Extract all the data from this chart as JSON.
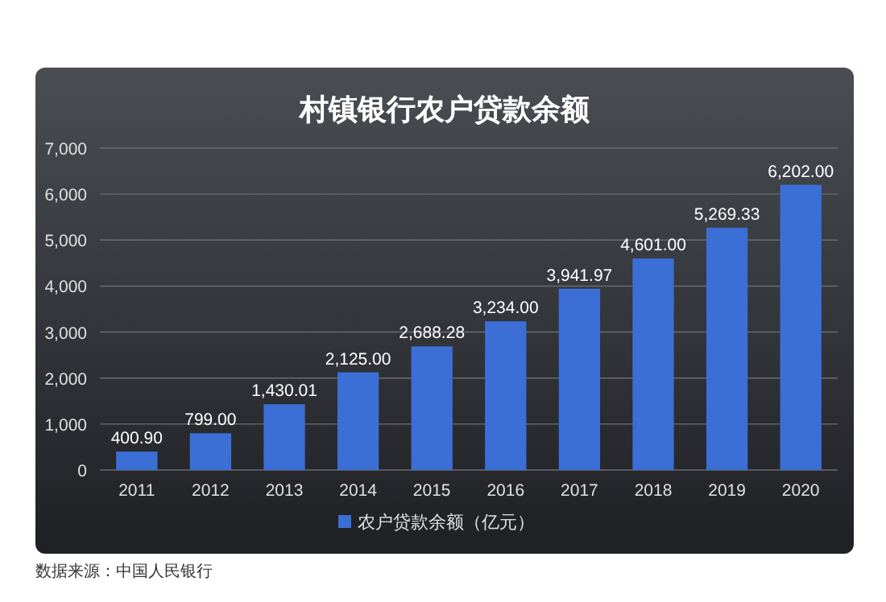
{
  "chart_data": {
    "type": "bar",
    "title": "村镇银行农户贷款余额",
    "categories": [
      "2011",
      "2012",
      "2013",
      "2014",
      "2015",
      "2016",
      "2017",
      "2018",
      "2019",
      "2020"
    ],
    "series": [
      {
        "name": "农户贷款余额（亿元）",
        "color": "#3b6fd6",
        "values": [
          400.9,
          799.0,
          1430.01,
          2125.0,
          2688.28,
          3234.0,
          3941.97,
          4601.0,
          5269.33,
          6202.0
        ]
      }
    ],
    "value_labels": [
      "400.90",
      "799.00",
      "1,430.01",
      "2,125.00",
      "2,688.28",
      "3,234.00",
      "3,941.97",
      "4,601.00",
      "5,269.33",
      "6,202.00"
    ],
    "ylim": [
      0,
      7000
    ],
    "yticks": [
      {
        "value": 0,
        "label": "0"
      },
      {
        "value": 1000,
        "label": "1,000"
      },
      {
        "value": 2000,
        "label": "2,000"
      },
      {
        "value": 3000,
        "label": "3,000"
      },
      {
        "value": 4000,
        "label": "4,000"
      },
      {
        "value": 5000,
        "label": "5,000"
      },
      {
        "value": 6000,
        "label": "6,000"
      },
      {
        "value": 7000,
        "label": "7,000"
      }
    ],
    "grid": "y",
    "legend": "bottom",
    "annotations": [
      "数据来源：中国人民银行"
    ]
  }
}
